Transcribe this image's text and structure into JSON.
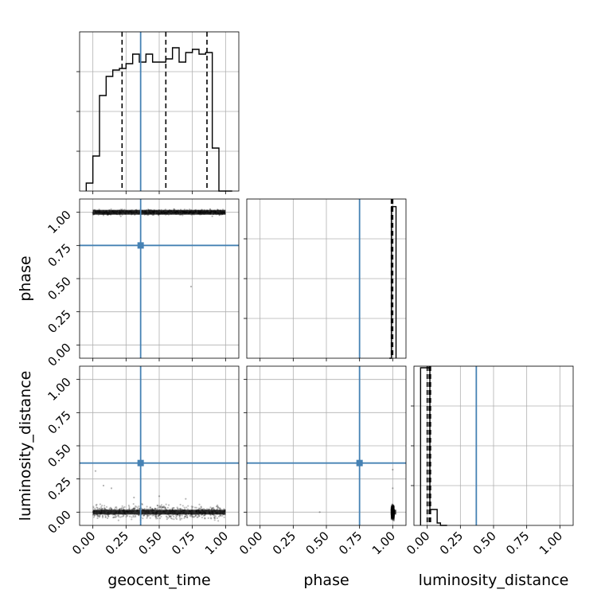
{
  "chart_data": {
    "type": "corner",
    "title": "",
    "parameters": [
      "geocent_time",
      "phase",
      "luminosity_distance"
    ],
    "axis_range": [
      -0.1,
      1.1
    ],
    "tick_labels": [
      "0.00",
      "0.25",
      "0.50",
      "0.75",
      "1.00"
    ],
    "tick_values": [
      0.0,
      0.25,
      0.5,
      0.75,
      1.0
    ],
    "grid": true,
    "colors": {
      "truth": "#4682b4",
      "samples": "#000000"
    },
    "truths": {
      "geocent_time": 0.36,
      "phase": 0.75,
      "luminosity_distance": 0.37
    },
    "quantile_lines": {
      "geocent_time": [
        0.22,
        0.55,
        0.86
      ],
      "phase": [
        0.99,
        1.0
      ],
      "luminosity_distance": [
        0.0,
        0.015,
        0.025
      ]
    },
    "histograms": {
      "geocent_time": {
        "bin_edges": [
          -0.05,
          0.0,
          0.05,
          0.1,
          0.15,
          0.2,
          0.25,
          0.3,
          0.35,
          0.4,
          0.45,
          0.5,
          0.55,
          0.6,
          0.65,
          0.7,
          0.75,
          0.8,
          0.85,
          0.9,
          0.95,
          1.0,
          1.05
        ],
        "counts": [
          5,
          22,
          60,
          72,
          76,
          77,
          80,
          86,
          81,
          86,
          81,
          81,
          83,
          90,
          81,
          87,
          89,
          86,
          87,
          27,
          0,
          0
        ],
        "ymax": 100
      },
      "phase": {
        "bin_edges": [
          0.975,
          0.99,
          1.005,
          1.025
        ],
        "counts": [
          0,
          100,
          100
        ],
        "ymax": 105
      },
      "luminosity_distance": {
        "bin_edges": [
          -0.05,
          0.0,
          0.02,
          0.05,
          0.075,
          0.1,
          0.15
        ],
        "counts": [
          99,
          99,
          10,
          10,
          1.5,
          0
        ],
        "ymax": 100
      }
    },
    "scatter": [
      {
        "x": "geocent_time",
        "y": "phase",
        "band": {
          "x_range": [
            0.0,
            1.0
          ],
          "y_center": 1.0,
          "y_halfwidth": 0.015
        },
        "outliers": [
          [
            0.21,
            0.97
          ],
          [
            0.45,
            0.98
          ],
          [
            0.74,
            0.44
          ],
          [
            0.9,
            0.97
          ]
        ]
      },
      {
        "x": "geocent_time",
        "y": "luminosity_distance",
        "band": {
          "x_range": [
            0.0,
            1.0
          ],
          "y_center": 0.0,
          "y_halfwidth": 0.04
        },
        "outliers": [
          [
            0.02,
            0.31
          ],
          [
            0.08,
            0.2
          ],
          [
            0.14,
            0.18
          ],
          [
            0.31,
            0.11
          ],
          [
            0.5,
            0.12
          ],
          [
            0.7,
            0.1
          ]
        ]
      },
      {
        "x": "phase",
        "y": "luminosity_distance",
        "band": {
          "x_range": [
            0.99,
            1.01
          ],
          "y_center": 0.0,
          "y_halfwidth": 0.04
        },
        "outliers": [
          [
            0.45,
            0.0
          ],
          [
            1.0,
            0.32
          ],
          [
            1.0,
            0.18
          ]
        ]
      }
    ]
  }
}
